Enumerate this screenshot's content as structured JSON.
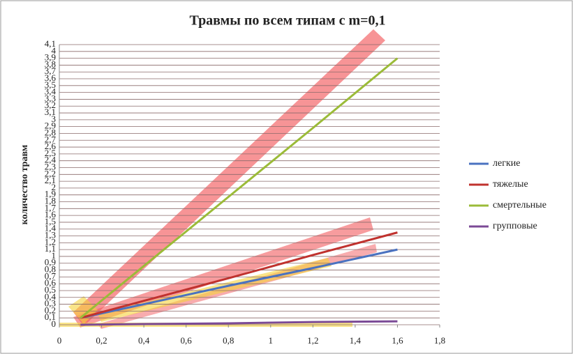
{
  "chart_data": {
    "type": "line",
    "title": "Травмы по всем типам с m=0,1",
    "y_label": "количество травм",
    "x": [
      0.1,
      0.4,
      0.8,
      1.2,
      1.6
    ],
    "series": [
      {
        "name": "легкие",
        "color": "#4a72c0",
        "values": [
          0.1,
          0.3,
          0.57,
          0.83,
          1.1
        ]
      },
      {
        "name": "тяжелые",
        "color": "#c0322e",
        "values": [
          0.1,
          0.35,
          0.68,
          1.02,
          1.35
        ]
      },
      {
        "name": "смертельные",
        "color": "#9bbb38",
        "values": [
          0.1,
          0.86,
          1.87,
          2.88,
          3.9
        ]
      },
      {
        "name": "групповые",
        "color": "#7b4a96",
        "values": [
          0,
          0.01,
          0.02,
          0.04,
          0.05
        ]
      }
    ],
    "xlim": [
      0,
      1.8
    ],
    "xticks": [
      0,
      {
        "value": 0.2,
        "label": "0,2"
      },
      {
        "value": 0.4,
        "label": "0,4"
      },
      {
        "value": 0.6,
        "label": "0,6"
      },
      {
        "value": 0.8,
        "label": "0,8"
      },
      1,
      {
        "value": 1.2,
        "label": "1,2"
      },
      {
        "value": 1.4,
        "label": "1,4"
      },
      {
        "value": 1.6,
        "label": "1,6"
      },
      {
        "value": 1.8,
        "label": "1,8"
      }
    ],
    "ylim": [
      0,
      4.1
    ],
    "yticks": [
      0,
      {
        "value": 0.1,
        "label": "0,1"
      },
      {
        "value": 0.2,
        "label": "0,2"
      },
      {
        "value": 0.3,
        "label": "0,3"
      },
      {
        "value": 0.4,
        "label": "0,4"
      },
      {
        "value": 0.5,
        "label": "0,5"
      },
      {
        "value": 0.6,
        "label": "0,6"
      },
      {
        "value": 0.7,
        "label": "0,7"
      },
      {
        "value": 0.8,
        "label": "0,8"
      },
      {
        "value": 0.9,
        "label": "0,9"
      },
      1,
      {
        "value": 1.1,
        "label": "1,1"
      },
      {
        "value": 1.2,
        "label": "1,2"
      },
      {
        "value": 1.3,
        "label": "1,3"
      },
      {
        "value": 1.4,
        "label": "1,4"
      },
      {
        "value": 1.5,
        "label": "1,5"
      },
      {
        "value": 1.6,
        "label": "1,6"
      },
      {
        "value": 1.7,
        "label": "1,7"
      },
      {
        "value": 1.8,
        "label": "1,8"
      },
      {
        "value": 1.9,
        "label": "1,9"
      },
      2,
      {
        "value": 2.1,
        "label": "2,1"
      },
      {
        "value": 2.2,
        "label": "2,2"
      },
      {
        "value": 2.3,
        "label": "2,3"
      },
      {
        "value": 2.4,
        "label": "2,4"
      },
      {
        "value": 2.5,
        "label": "2,5"
      },
      {
        "value": 2.6,
        "label": "2,6"
      },
      {
        "value": 2.7,
        "label": "2,7"
      },
      {
        "value": 2.8,
        "label": "2,8"
      },
      {
        "value": 2.9,
        "label": "2,9"
      },
      3,
      {
        "value": 3.1,
        "label": "3,1"
      },
      {
        "value": 3.2,
        "label": "3,2"
      },
      {
        "value": 3.3,
        "label": "3,3"
      },
      {
        "value": 3.4,
        "label": "3,4"
      },
      {
        "value": 3.5,
        "label": "3,5"
      },
      {
        "value": 3.6,
        "label": "3,6"
      },
      {
        "value": 3.7,
        "label": "3,7"
      },
      {
        "value": 3.8,
        "label": "3,8"
      },
      {
        "value": 3.9,
        "label": "3,9"
      },
      4,
      {
        "value": 4.1,
        "label": "4,1"
      }
    ],
    "grid": true
  }
}
